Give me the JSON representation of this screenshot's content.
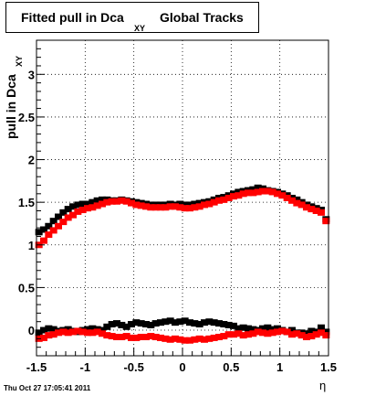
{
  "title": {
    "main": "Fitted pull in Dca",
    "subscript": "XY",
    "tail": "Global Tracks"
  },
  "footer": {
    "timestamp": "Thu Oct 27 17:05:41 2011"
  },
  "chart_data": {
    "type": "scatter",
    "title": "Fitted pull in Dca XY Global Tracks",
    "xlabel": "η",
    "ylabel": "pull in Dca",
    "ylabel_subscript": "XY",
    "xlim": [
      -1.5,
      1.5
    ],
    "ylim": [
      -0.3,
      3.4
    ],
    "grid": true,
    "x_ticks": [
      -1.5,
      -1,
      -0.5,
      0,
      0.5,
      1,
      1.5
    ],
    "x_tick_labels": [
      "-1.5",
      "-1",
      "-0.5",
      "0",
      "0.5",
      "1",
      "1.5"
    ],
    "y_ticks": [
      0,
      0.5,
      1,
      1.5,
      2,
      2.5,
      3
    ],
    "y_tick_labels": [
      "0",
      "0.5",
      "1",
      "1.5",
      "2",
      "2.5",
      "3"
    ],
    "series": [
      {
        "color": "#000000",
        "x": [
          -1.475,
          -1.425,
          -1.375,
          -1.325,
          -1.275,
          -1.225,
          -1.175,
          -1.125,
          -1.075,
          -1.025,
          -0.975,
          -0.925,
          -0.875,
          -0.825,
          -0.775,
          -0.725,
          -0.675,
          -0.625,
          -0.575,
          -0.525,
          -0.475,
          -0.425,
          -0.375,
          -0.325,
          -0.275,
          -0.225,
          -0.175,
          -0.125,
          -0.075,
          -0.025,
          0.025,
          0.075,
          0.125,
          0.175,
          0.225,
          0.275,
          0.325,
          0.375,
          0.425,
          0.475,
          0.525,
          0.575,
          0.625,
          0.675,
          0.725,
          0.775,
          0.825,
          0.875,
          0.925,
          0.975,
          1.025,
          1.075,
          1.125,
          1.175,
          1.225,
          1.275,
          1.325,
          1.375,
          1.425,
          1.475
        ],
        "y": [
          1.15,
          1.18,
          1.22,
          1.28,
          1.33,
          1.38,
          1.42,
          1.45,
          1.47,
          1.48,
          1.48,
          1.5,
          1.52,
          1.53,
          1.53,
          1.52,
          1.52,
          1.53,
          1.52,
          1.51,
          1.5,
          1.49,
          1.48,
          1.47,
          1.47,
          1.47,
          1.47,
          1.48,
          1.47,
          1.48,
          1.47,
          1.47,
          1.48,
          1.49,
          1.5,
          1.51,
          1.53,
          1.55,
          1.56,
          1.58,
          1.6,
          1.62,
          1.63,
          1.64,
          1.65,
          1.67,
          1.66,
          1.64,
          1.63,
          1.62,
          1.6,
          1.58,
          1.55,
          1.53,
          1.5,
          1.47,
          1.45,
          1.43,
          1.41,
          1.3
        ]
      },
      {
        "color": "#ff0000",
        "x": [
          -1.475,
          -1.425,
          -1.375,
          -1.325,
          -1.275,
          -1.225,
          -1.175,
          -1.125,
          -1.075,
          -1.025,
          -0.975,
          -0.925,
          -0.875,
          -0.825,
          -0.775,
          -0.725,
          -0.675,
          -0.625,
          -0.575,
          -0.525,
          -0.475,
          -0.425,
          -0.375,
          -0.325,
          -0.275,
          -0.225,
          -0.175,
          -0.125,
          -0.075,
          -0.025,
          0.025,
          0.075,
          0.125,
          0.175,
          0.225,
          0.275,
          0.325,
          0.375,
          0.425,
          0.475,
          0.525,
          0.575,
          0.625,
          0.675,
          0.725,
          0.775,
          0.825,
          0.875,
          0.925,
          0.975,
          1.025,
          1.075,
          1.125,
          1.175,
          1.225,
          1.275,
          1.325,
          1.375,
          1.425,
          1.475
        ],
        "y": [
          1.0,
          1.05,
          1.12,
          1.17,
          1.22,
          1.27,
          1.32,
          1.35,
          1.39,
          1.41,
          1.43,
          1.44,
          1.46,
          1.48,
          1.5,
          1.51,
          1.51,
          1.52,
          1.51,
          1.49,
          1.47,
          1.46,
          1.45,
          1.44,
          1.44,
          1.44,
          1.44,
          1.45,
          1.45,
          1.44,
          1.43,
          1.43,
          1.44,
          1.45,
          1.47,
          1.48,
          1.5,
          1.52,
          1.53,
          1.55,
          1.57,
          1.58,
          1.6,
          1.61,
          1.61,
          1.62,
          1.63,
          1.63,
          1.62,
          1.6,
          1.58,
          1.55,
          1.52,
          1.49,
          1.47,
          1.44,
          1.42,
          1.4,
          1.38,
          1.28
        ]
      },
      {
        "color": "#000000",
        "x": [
          -1.475,
          -1.425,
          -1.375,
          -1.325,
          -1.275,
          -1.225,
          -1.175,
          -1.125,
          -1.075,
          -1.025,
          -0.975,
          -0.925,
          -0.875,
          -0.825,
          -0.775,
          -0.725,
          -0.675,
          -0.625,
          -0.575,
          -0.525,
          -0.475,
          -0.425,
          -0.375,
          -0.325,
          -0.275,
          -0.225,
          -0.175,
          -0.125,
          -0.075,
          -0.025,
          0.025,
          0.075,
          0.125,
          0.175,
          0.225,
          0.275,
          0.325,
          0.375,
          0.425,
          0.475,
          0.525,
          0.575,
          0.625,
          0.675,
          0.725,
          0.775,
          0.825,
          0.875,
          0.925,
          0.975,
          1.025,
          1.075,
          1.125,
          1.175,
          1.225,
          1.275,
          1.325,
          1.375,
          1.425,
          1.475
        ],
        "y": [
          -0.03,
          0.0,
          0.02,
          0.01,
          -0.01,
          0.0,
          0.01,
          -0.01,
          -0.02,
          0.0,
          0.01,
          0.02,
          0.01,
          0.0,
          0.04,
          0.07,
          0.08,
          0.06,
          0.04,
          0.07,
          0.09,
          0.08,
          0.07,
          0.06,
          0.08,
          0.09,
          0.1,
          0.11,
          0.09,
          0.1,
          0.11,
          0.09,
          0.08,
          0.07,
          0.09,
          0.1,
          0.09,
          0.08,
          0.07,
          0.06,
          0.05,
          0.02,
          0.03,
          0.02,
          0.01,
          0.0,
          0.02,
          0.03,
          0.01,
          0.02,
          0.0,
          -0.02,
          0.0,
          -0.03,
          -0.03,
          -0.04,
          -0.01,
          -0.02,
          0.03,
          -0.02
        ]
      },
      {
        "color": "#ff0000",
        "x": [
          -1.475,
          -1.425,
          -1.375,
          -1.325,
          -1.275,
          -1.225,
          -1.175,
          -1.125,
          -1.075,
          -1.025,
          -0.975,
          -0.925,
          -0.875,
          -0.825,
          -0.775,
          -0.725,
          -0.675,
          -0.625,
          -0.575,
          -0.525,
          -0.475,
          -0.425,
          -0.375,
          -0.325,
          -0.275,
          -0.225,
          -0.175,
          -0.125,
          -0.075,
          -0.025,
          0.025,
          0.075,
          0.125,
          0.175,
          0.225,
          0.275,
          0.325,
          0.375,
          0.425,
          0.475,
          0.525,
          0.575,
          0.625,
          0.675,
          0.725,
          0.775,
          0.825,
          0.875,
          0.925,
          0.975,
          1.025,
          1.075,
          1.125,
          1.175,
          1.225,
          1.275,
          1.325,
          1.375,
          1.425,
          1.475
        ],
        "y": [
          -0.1,
          -0.09,
          -0.06,
          -0.05,
          -0.03,
          -0.02,
          -0.03,
          -0.02,
          -0.01,
          -0.02,
          -0.03,
          -0.03,
          -0.02,
          -0.04,
          -0.06,
          -0.07,
          -0.08,
          -0.08,
          -0.07,
          -0.09,
          -0.09,
          -0.08,
          -0.08,
          -0.07,
          -0.08,
          -0.09,
          -0.1,
          -0.11,
          -0.1,
          -0.11,
          -0.12,
          -0.12,
          -0.11,
          -0.1,
          -0.11,
          -0.1,
          -0.09,
          -0.08,
          -0.07,
          -0.05,
          -0.05,
          -0.04,
          -0.06,
          -0.05,
          -0.04,
          -0.02,
          -0.03,
          -0.04,
          -0.03,
          -0.02,
          -0.01,
          -0.02,
          -0.05,
          -0.04,
          -0.06,
          -0.08,
          -0.07,
          -0.05,
          -0.03,
          -0.06
        ]
      }
    ]
  }
}
